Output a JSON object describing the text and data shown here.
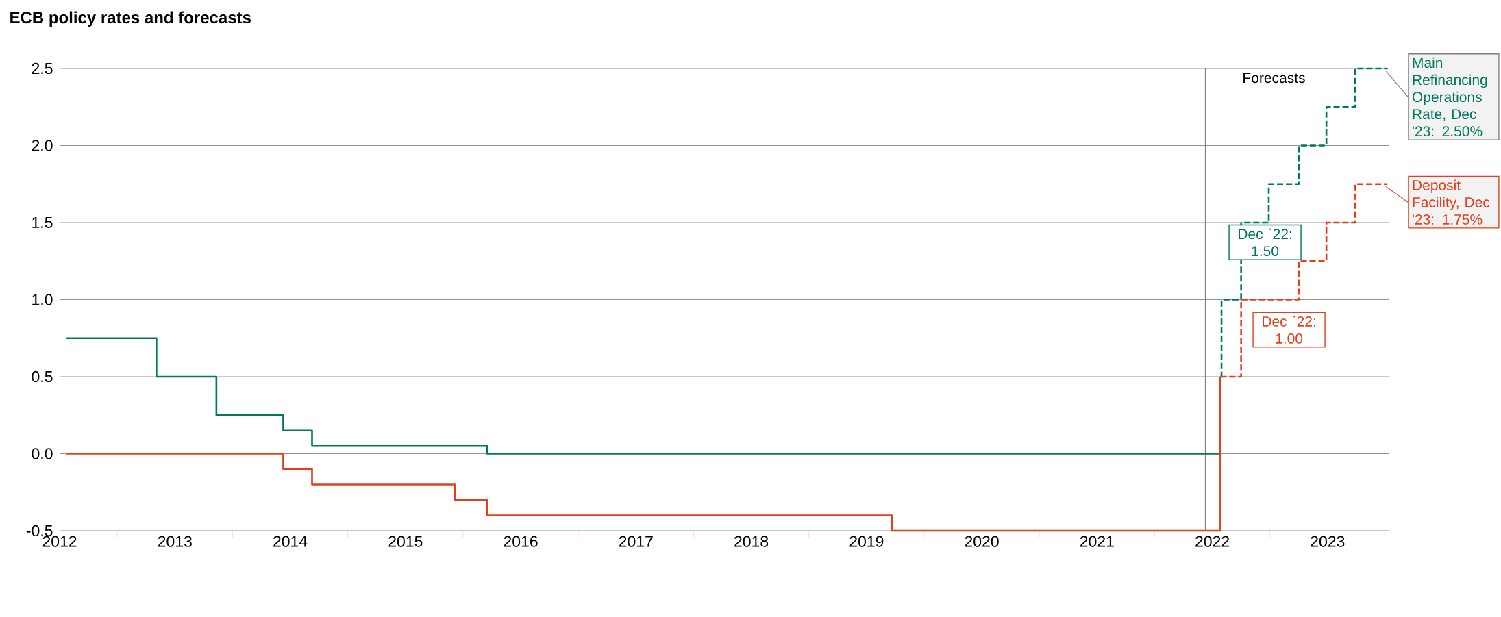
{
  "chart_data": {
    "type": "step",
    "title": "ECB policy rates and forecasts",
    "xlim": [
      2012.5,
      2024.03
    ],
    "ylim": [
      -0.5,
      2.5
    ],
    "xticks": [
      {
        "value": 2013,
        "label": null
      },
      {
        "value": 2014,
        "label": null
      },
      {
        "value": 2015,
        "label": null
      },
      {
        "value": 2016,
        "label": null
      },
      {
        "value": 2017,
        "label": null
      },
      {
        "value": 2018,
        "label": null
      },
      {
        "value": 2019,
        "label": null
      },
      {
        "value": 2020,
        "label": null
      },
      {
        "value": 2021,
        "label": null
      },
      {
        "value": 2022,
        "label": null
      },
      {
        "value": 2023,
        "label": null
      },
      {
        "value": 2024,
        "label": null
      },
      {
        "value": 2012.5,
        "label": "2012"
      },
      {
        "value": 2013.5,
        "label": "2013"
      },
      {
        "value": 2014.5,
        "label": "2014"
      },
      {
        "value": 2015.5,
        "label": "2015"
      },
      {
        "value": 2016.5,
        "label": "2016"
      },
      {
        "value": 2017.5,
        "label": "2017"
      },
      {
        "value": 2018.5,
        "label": "2018"
      },
      {
        "value": 2019.5,
        "label": "2019"
      },
      {
        "value": 2020.5,
        "label": "2020"
      },
      {
        "value": 2021.5,
        "label": "2021"
      },
      {
        "value": 2022.5,
        "label": "2022"
      },
      {
        "value": 2023.5,
        "label": "2023"
      }
    ],
    "yticks": [
      -0.5,
      {
        "value": 0,
        "label": "0.0"
      },
      0.5,
      {
        "value": 1,
        "label": "1.0"
      },
      1.5,
      {
        "value": 2,
        "label": "2.0"
      },
      2.5
    ],
    "grid": "y",
    "series": [
      {
        "color": "#00775f",
        "line_style": "solid",
        "x": [
          2012.56,
          2013.34,
          2013.86,
          2014.44,
          2014.69,
          2016.21,
          2022.57
        ],
        "values": [
          0.75,
          0.5,
          0.25,
          0.15,
          0.05,
          0,
          0.5
        ]
      },
      {
        "color": "#00775f",
        "line_style": "dashed",
        "x": [
          2022.57,
          2022.58,
          2022.75,
          2022.99,
          2023.25,
          2023.49,
          2023.74,
          2024.02
        ],
        "values": [
          0.5,
          1.0,
          1.5,
          1.75,
          2.0,
          2.25,
          2.5,
          2.5
        ]
      },
      {
        "color": "#e2401c",
        "line_style": "solid",
        "x": [
          2012.56,
          2014.44,
          2014.69,
          2015.93,
          2016.21,
          2019.72,
          2022.57
        ],
        "values": [
          0,
          -0.1,
          -0.2,
          -0.3,
          -0.4,
          -0.5,
          0.5
        ]
      },
      {
        "color": "#e2401c",
        "line_style": "dashed",
        "x": [
          2022.57,
          2022.75,
          2023.25,
          2023.49,
          2023.74,
          2024.02
        ],
        "values": [
          0.5,
          1.0,
          1.25,
          1.5,
          1.75,
          1.75
        ]
      }
    ],
    "ref_lines": [
      {
        "axis": "x",
        "value": 2022.44,
        "label": "Forecasts",
        "color": "#808080"
      }
    ],
    "annotations": [
      "Dec `22: 1.50",
      "Dec `22: 1.00",
      {
        "text": "Main Refinancing Operations Rate, Dec '23: 2.50%",
        "x": 2023.96,
        "y": 2.5
      },
      {
        "text": "Deposit Facility, Dec '23: 1.75%",
        "x": 2023.96,
        "y": 1.75
      }
    ]
  }
}
